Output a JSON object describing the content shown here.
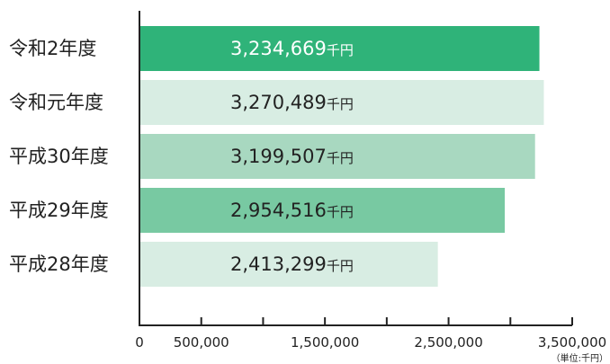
{
  "chart_data": {
    "type": "bar",
    "orientation": "horizontal",
    "categories": [
      "令和2年度",
      "令和元年度",
      "平成30年度",
      "平成29年度",
      "平成28年度"
    ],
    "values": [
      3234669,
      3270489,
      3199507,
      2954516,
      2413299
    ],
    "value_labels": [
      "3,234,669",
      "3,270,489",
      "3,199,507",
      "2,954,516",
      "2,413,299"
    ],
    "value_unit": "千円",
    "bar_colors": [
      "#2fb379",
      "#d8ede3",
      "#a8d8c0",
      "#78c9a2",
      "#d8ede3"
    ],
    "value_text_colors": [
      "#ffffff",
      "#222222",
      "#222222",
      "#222222",
      "#222222"
    ],
    "xlim": [
      0,
      3500000
    ],
    "tick_values": [
      0,
      500000,
      1000000,
      1500000,
      2000000,
      2500000,
      3000000,
      3500000
    ],
    "tick_labels": [
      "0",
      "500,000",
      "",
      "1,500,000",
      "",
      "2,500,000",
      "",
      "3,500,000"
    ],
    "unit_note": "（単位:千円）",
    "grid": false,
    "legend": "none",
    "axis_color": "#222222"
  }
}
